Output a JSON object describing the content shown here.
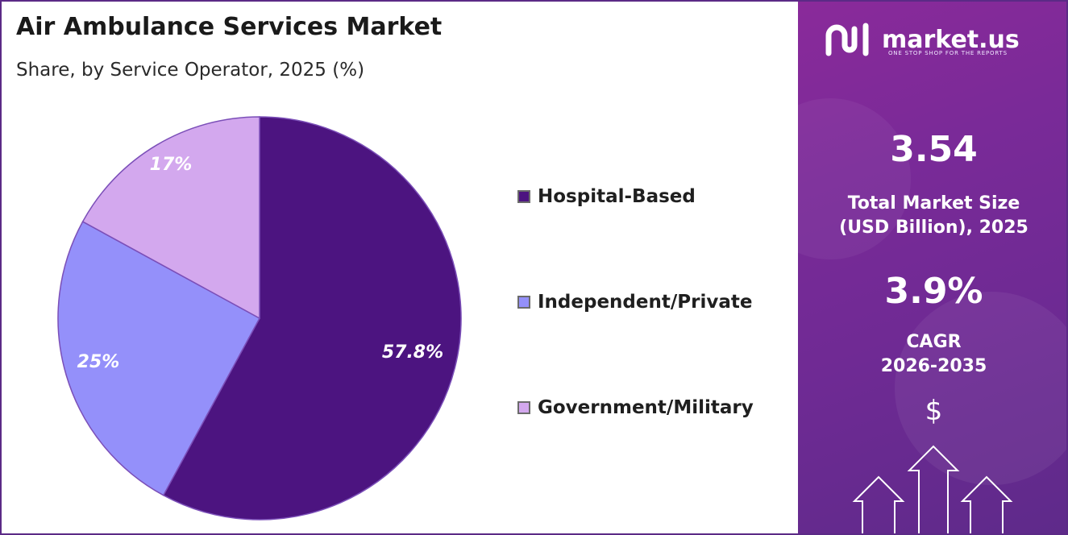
{
  "header": {
    "title": "Air Ambulance Services Market",
    "subtitle": "Share, by Service Operator, 2025 (%)"
  },
  "chart_data": {
    "type": "pie",
    "title": "Air Ambulance Services Market",
    "subtitle": "Share, by Service Operator, 2025 (%)",
    "slices": [
      {
        "name": "Hospital-Based",
        "value": 57.8,
        "label": "57.8%",
        "color": "#4c1480"
      },
      {
        "name": "Independent/Private",
        "value": 25,
        "label": "25%",
        "color": "#9490fa"
      },
      {
        "name": "Government/Military",
        "value": 17,
        "label": "17%",
        "color": "#d3a8ee"
      }
    ],
    "legend": [
      "Hospital-Based",
      "Independent/Private",
      "Government/Military"
    ],
    "legend_position": "right",
    "start_angle": "top, clockwise"
  },
  "brand": {
    "name": "market.us",
    "tagline": "ONE STOP SHOP FOR THE REPORTS",
    "logo_icon": "market-us-logo-icon"
  },
  "stats": {
    "market_size": {
      "value": "3.54",
      "label_line1": "Total Market Size",
      "label_line2": "(USD Billion), 2025"
    },
    "cagr": {
      "value": "3.9%",
      "label_line1": "CAGR",
      "label_line2": "2026-2035"
    }
  },
  "decor": {
    "dollar_symbol": "$",
    "arrows_icon": "growth-arrows-icon"
  },
  "colors": {
    "panel_purple": "#7a2a98",
    "border": "#5b2a86"
  }
}
